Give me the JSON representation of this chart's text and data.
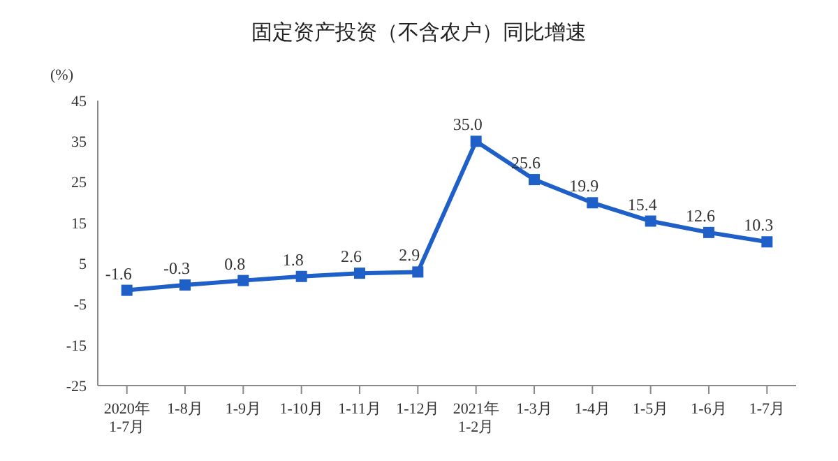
{
  "chart_data": {
    "type": "line",
    "title": "固定资产投资（不含农户）同比增速",
    "ylabel": "(%)",
    "categories": [
      "2020年\n1-7月",
      "1-8月",
      "1-9月",
      "1-10月",
      "1-11月",
      "1-12月",
      "2021年\n1-2月",
      "1-3月",
      "1-4月",
      "1-5月",
      "1-6月",
      "1-7月"
    ],
    "series": [
      {
        "color": "#1e5fc8",
        "values": [
          -1.6,
          -0.3,
          0.8,
          1.8,
          2.6,
          2.9,
          35.0,
          25.6,
          19.9,
          15.4,
          12.6,
          10.3
        ],
        "value_labels": [
          "-1.6",
          "-0.3",
          "0.8",
          "1.8",
          "2.6",
          "2.9",
          "35.0",
          "25.6",
          "19.9",
          "15.4",
          "12.6",
          "10.3"
        ]
      }
    ],
    "ylim": [
      -25,
      45
    ],
    "yticks": [
      -25,
      -15,
      -5,
      5,
      15,
      25,
      35,
      45
    ],
    "grid": false,
    "legend": false,
    "marker": "square",
    "line_style": "solid"
  }
}
